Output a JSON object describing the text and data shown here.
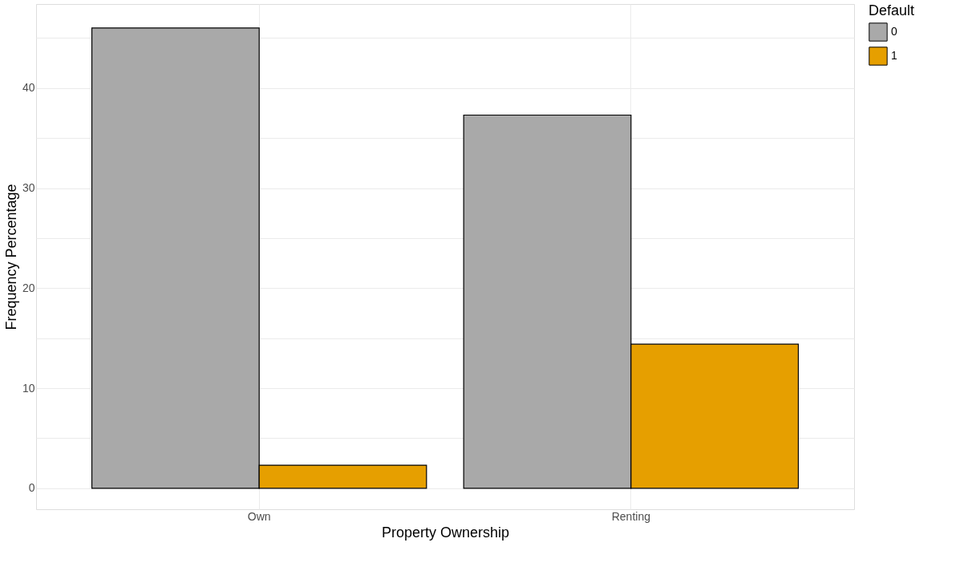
{
  "chart_data": {
    "type": "bar",
    "xlabel": "Property Ownership",
    "ylabel": "Frequency Percentage",
    "legend_title": "Default",
    "categories": [
      "Own",
      "Renting"
    ],
    "series": [
      {
        "name": "0",
        "color": "#a9a9a9",
        "values": [
          46.0,
          37.3
        ]
      },
      {
        "name": "1",
        "color": "#e69f00",
        "values": [
          2.3,
          14.4
        ]
      }
    ],
    "ylim": [
      -2.1,
      48.4
    ],
    "yticks": [
      0,
      {
        "value": 5,
        "label": null
      },
      10,
      {
        "value": 15,
        "label": null
      },
      20,
      {
        "value": 25,
        "label": null
      },
      30,
      {
        "value": 35,
        "label": null
      },
      40,
      {
        "value": 45,
        "label": null
      }
    ],
    "grid": true,
    "legend": "right"
  }
}
